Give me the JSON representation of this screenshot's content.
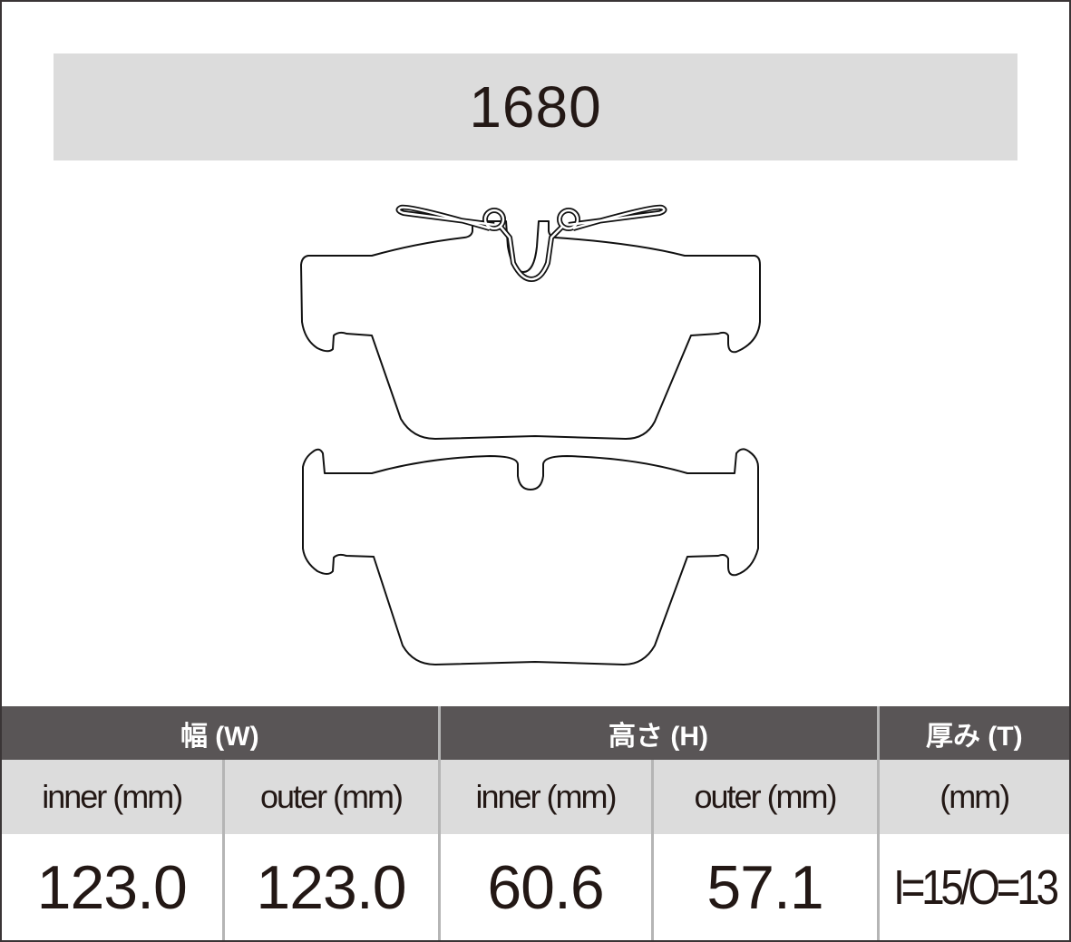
{
  "title": "1680",
  "table": {
    "groups": [
      {
        "label": "幅 (W)"
      },
      {
        "label": "高さ (H)"
      },
      {
        "label": "厚み (T)"
      }
    ],
    "subheaders": [
      "inner (mm)",
      "outer (mm)",
      "inner (mm)",
      "outer (mm)",
      "(mm)"
    ],
    "values": [
      "123.0",
      "123.0",
      "60.6",
      "57.1",
      "I=15/O=13"
    ]
  }
}
